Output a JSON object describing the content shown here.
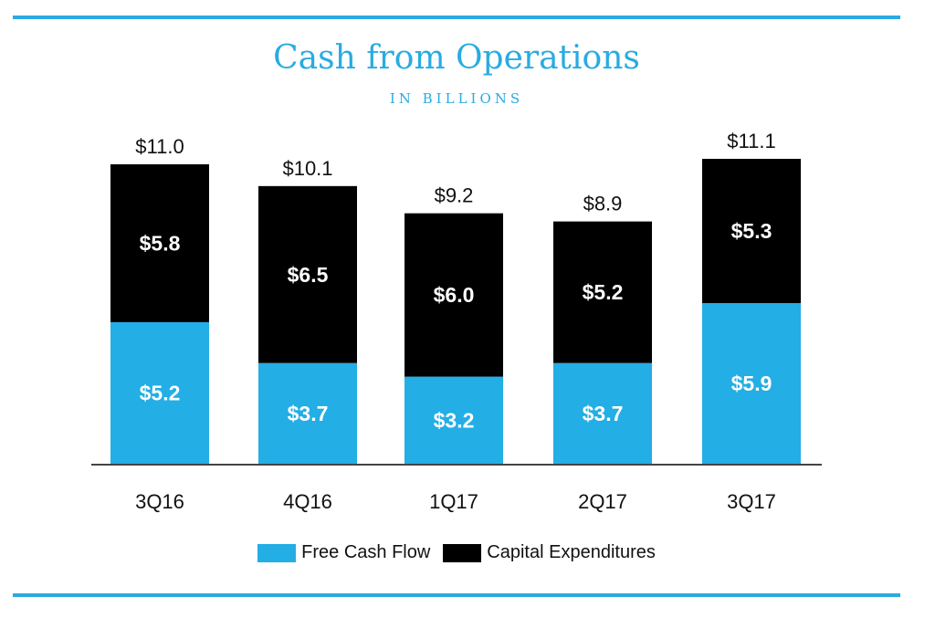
{
  "colors": {
    "accent": "#29abe2",
    "free_cash_flow": "#23aee5",
    "capital_expenditures": "#000000",
    "axis": "#444444"
  },
  "chart_data": {
    "type": "bar",
    "stacked": true,
    "title": "Cash from Operations",
    "subtitle": "IN BILLIONS",
    "categories": [
      "3Q16",
      "4Q16",
      "1Q17",
      "2Q17",
      "3Q17"
    ],
    "series": [
      {
        "name": "Free Cash Flow",
        "values": [
          5.2,
          3.7,
          3.2,
          3.7,
          5.9
        ],
        "labels": [
          "$5.2",
          "$3.7",
          "$3.2",
          "$3.7",
          "$5.9"
        ]
      },
      {
        "name": "Capital Expenditures",
        "values": [
          5.8,
          6.5,
          6.0,
          5.2,
          5.3
        ],
        "labels": [
          "$5.8",
          "$6.5",
          "$6.0",
          "$5.2",
          "$5.3"
        ]
      }
    ],
    "totals": [
      11.0,
      10.1,
      9.2,
      8.9,
      11.1
    ],
    "total_labels": [
      "$11.0",
      "$10.1",
      "$9.2",
      "$8.9",
      "$11.1"
    ],
    "ylim": [
      0,
      11.1
    ],
    "grid": false,
    "legend_position": "bottom"
  }
}
